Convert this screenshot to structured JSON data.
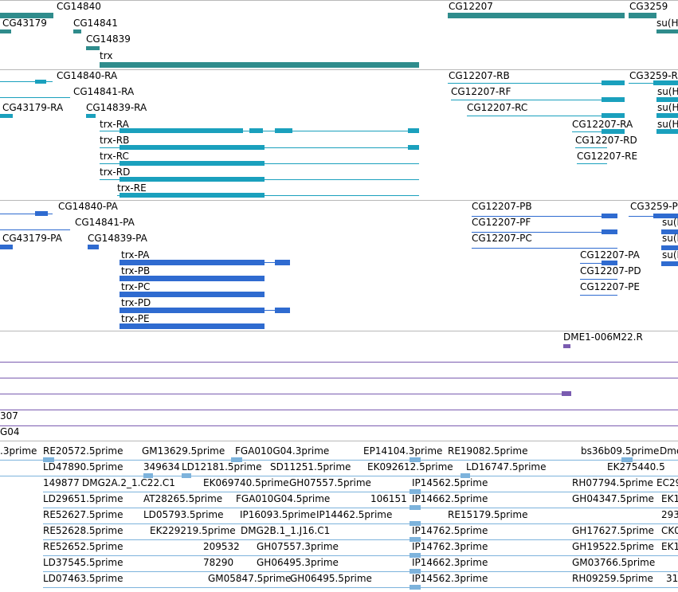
{
  "colors": {
    "gene": "#2f8c8c",
    "mrna": "#1aa0bd",
    "protein": "#2f6bd0",
    "clone": "#7a5bb0",
    "est": "#7db3dc",
    "separator": "#b8b8b8"
  },
  "gene_track": {
    "labels": [
      "CG14840",
      "CG43179",
      "CG14841",
      "CG14839",
      "trx",
      "CG12207",
      "CG3259",
      "su(Hw"
    ]
  },
  "transcript_track": {
    "labels": [
      "CG14840-RA",
      "CG43179-RA",
      "CG14841-RA",
      "CG14839-RA",
      "trx-RA",
      "trx-RB",
      "trx-RC",
      "trx-RD",
      "trx-RE",
      "CG12207-RB",
      "CG12207-RF",
      "CG12207-RC",
      "CG12207-RA",
      "CG12207-RD",
      "CG12207-RE",
      "CG3259-R",
      "su(H",
      "su(H",
      "su(H"
    ]
  },
  "protein_track": {
    "labels": [
      "CG14840-PA",
      "CG43179-PA",
      "CG14841-PA",
      "CG14839-PA",
      "trx-PA",
      "trx-PB",
      "trx-PC",
      "trx-PD",
      "trx-PE",
      "CG12207-PB",
      "CG12207-PF",
      "CG12207-PC",
      "CG12207-PA",
      "CG12207-PD",
      "CG12207-PE",
      "CG3259-P",
      "su(H",
      "su(H",
      "su(H"
    ]
  },
  "clone_track": {
    "labels": [
      "DME1-006M22.R",
      "307",
      "G04"
    ]
  },
  "est_track": {
    "labels": [
      ".3prime",
      "RE20572.5prime",
      "GM13629.5prime",
      "FGA010G04.3prime",
      "EP14104.3prime",
      "RE19082.5prime",
      "bs36b09.5prime",
      "Dme",
      "LD47890.5prime",
      "349634",
      "LD12181.5prime",
      "SD11251.5prime",
      "EK092612.5prime",
      "LD16747.5prime",
      "EK275440.5",
      "149877",
      "DMG2A.2_1.C22.C1",
      "EK069740.5prime",
      "GH07557.5prime",
      "IP14562.5prime",
      "RH07794.5prime",
      "EC29",
      "LD29651.5prime",
      "AT28265.5prime",
      "FGA010G04.5prime",
      "106151",
      "IP14662.5prime",
      "GH04347.5prime",
      "EK1",
      "RE52627.5prime",
      "LD05793.5prime",
      "IP16093.5prime",
      "IP14462.5prime",
      "RE15179.5prime",
      "293",
      "RE52628.5prime",
      "EK229219.5prime",
      "DMG2B.1_1.J16.C1",
      "IP14762.5prime",
      "GH17627.5prime",
      "CK0",
      "RE52652.5prime",
      "209532",
      "GH07557.3prime",
      "IP14762.3prime",
      "GH19522.5prime",
      "EK1",
      "LD37545.5prime",
      "78290",
      "GH06495.3prime",
      "IP14662.3prime",
      "GM03766.5prime",
      "LD07463.5prime",
      "GM05847.5prime",
      "GH06495.5prime",
      "IP14562.3prime",
      "RH09259.5prime",
      "31"
    ]
  }
}
